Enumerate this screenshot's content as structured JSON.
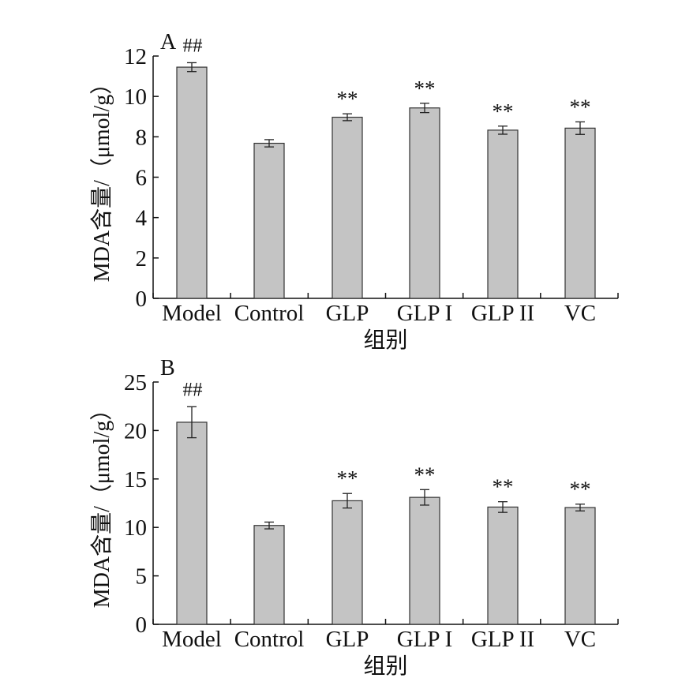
{
  "chart_data": [
    {
      "type": "bar",
      "panel_label": "A",
      "categories": [
        "Model",
        "Control",
        "GLP",
        "GLP I",
        "GLP II",
        "VC"
      ],
      "values": [
        11.45,
        7.68,
        8.97,
        9.43,
        8.33,
        8.43
      ],
      "errors": [
        0.22,
        0.18,
        0.17,
        0.23,
        0.2,
        0.31
      ],
      "annotations": [
        "##",
        "",
        "**",
        "**",
        "**",
        "**"
      ],
      "xlabel": "组别",
      "ylabel": "MDA含量/（μmol/g）",
      "ylim": [
        0,
        12
      ],
      "yticks": [
        0,
        2,
        4,
        6,
        8,
        10,
        12
      ],
      "grid": false
    },
    {
      "type": "bar",
      "panel_label": "B",
      "categories": [
        "Model",
        "Control",
        "GLP",
        "GLP I",
        "GLP II",
        "VC"
      ],
      "values": [
        20.85,
        10.2,
        12.75,
        13.1,
        12.1,
        12.05
      ],
      "errors": [
        1.6,
        0.35,
        0.75,
        0.8,
        0.55,
        0.35
      ],
      "annotations": [
        "##",
        "",
        "**",
        "**",
        "**",
        "**"
      ],
      "xlabel": "组别",
      "ylabel": "MDA含量/（μmol/g）",
      "ylim": [
        0,
        25
      ],
      "yticks": [
        0,
        5,
        10,
        15,
        20,
        25
      ],
      "grid": false
    }
  ]
}
